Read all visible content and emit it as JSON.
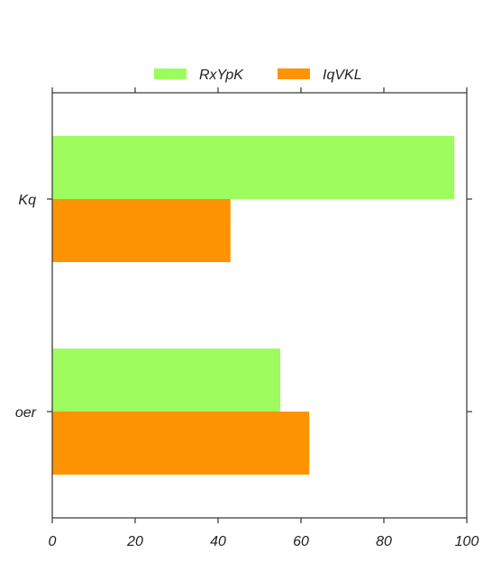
{
  "chart_data": {
    "type": "bar",
    "orientation": "horizontal",
    "title": "",
    "xlabel": "",
    "ylabel": "",
    "categories": [
      "Kq",
      "oer"
    ],
    "series": [
      {
        "name": "RxYpK",
        "color": "#9dfd5e",
        "values": [
          97,
          55
        ]
      },
      {
        "name": "IqVKL",
        "color": "#fe9304",
        "values": [
          43,
          62
        ]
      }
    ],
    "xlim": [
      0,
      100
    ],
    "xticks": [
      0,
      20,
      40,
      60,
      80,
      100
    ],
    "grid": false,
    "legend_position": "top-center"
  }
}
